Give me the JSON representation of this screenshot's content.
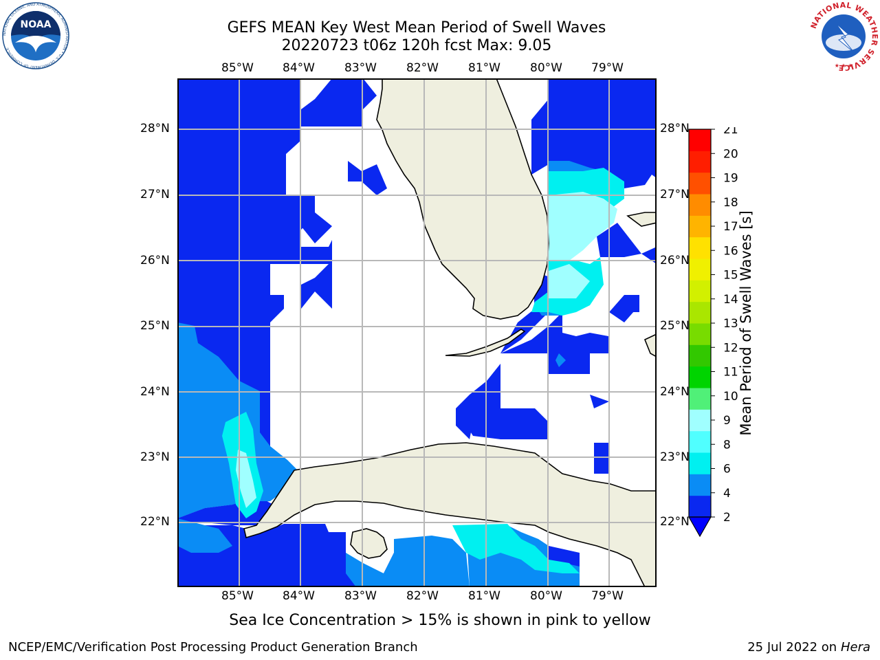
{
  "title": {
    "line1": "GEFS MEAN Key West Mean Period of Swell Waves",
    "line2": "20220723 t06z 120h fcst   Max: 9.05"
  },
  "map": {
    "lon_labels": [
      "85°W",
      "84°W",
      "83°W",
      "82°W",
      "81°W",
      "80°W",
      "79°W"
    ],
    "lat_labels": [
      "28°N",
      "27°N",
      "26°N",
      "25°N",
      "24°N",
      "23°N",
      "22°N"
    ],
    "lon_range": [
      -86.0,
      -78.25
    ],
    "lat_range": [
      21.05,
      28.75
    ],
    "land_color": "#efefdf",
    "grid_color": "#b8b8b8"
  },
  "colorbar": {
    "label": "Mean Period of Swell Waves [s]",
    "ticks": [
      "2",
      "4",
      "6",
      "8",
      "9",
      "10",
      "11",
      "12",
      "13",
      "14",
      "15",
      "16",
      "17",
      "18",
      "19",
      "20",
      "21"
    ],
    "colors": [
      "#0a28f0",
      "#0a8cf5",
      "#00f0f0",
      "#50ffff",
      "#a0ffff",
      "#50f078",
      "#00d400",
      "#32c800",
      "#78dc00",
      "#aae600",
      "#d2f000",
      "#f0f000",
      "#ffe100",
      "#ffb400",
      "#ff8c00",
      "#ff5000",
      "#ff1e00",
      "#ff0000"
    ],
    "extend_color": "#0000ff"
  },
  "note": "Sea Ice Concentration > 15% is shown in pink to yellow",
  "footer": {
    "left": "NCEP/EMC/Verification Post Processing Product Generation Branch",
    "right_prefix": "25 Jul 2022 on ",
    "right_italic": "Hera"
  },
  "logos": {
    "noaa": "NOAA",
    "nws_ring": "NATIONAL WEATHER SERVICE",
    "noaa_ring": "NATIONAL OCEANIC AND ATMOSPHERIC ADMINISTRATION • U.S. DEPARTMENT OF COMMERCE"
  },
  "chart_data": {
    "type": "heatmap",
    "title": "GEFS MEAN Key West Mean Period of Swell Waves",
    "subtitle": "20220723 t06z 120h fcst   Max: 9.05",
    "colorbar_label": "Mean Period of Swell Waves [s]",
    "levels": [
      2,
      4,
      6,
      8,
      9,
      10,
      11,
      12,
      13,
      14,
      15,
      16,
      17,
      18,
      19,
      20,
      21
    ],
    "max": 9.05
  }
}
